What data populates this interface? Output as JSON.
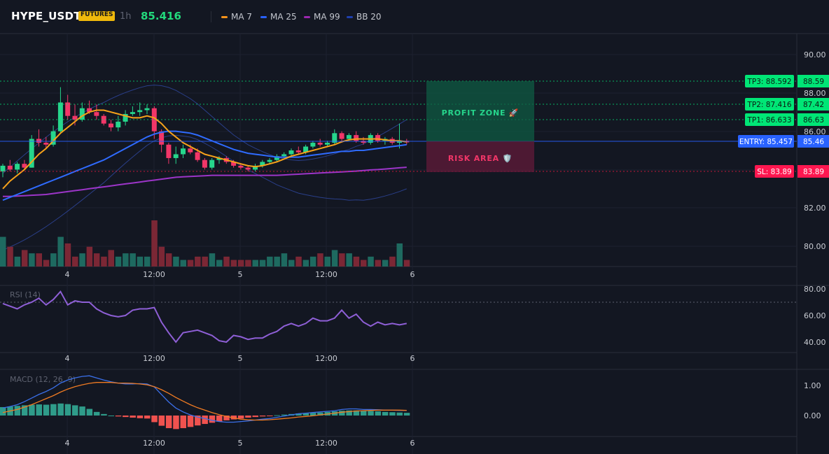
{
  "header": {
    "symbol": "HYPE_USDT",
    "badge": "FUTURES",
    "interval": "1h",
    "last_price": "85.416",
    "legend": [
      {
        "label": "MA 7",
        "color": "#f7931a"
      },
      {
        "label": "MA 25",
        "color": "#2962ff"
      },
      {
        "label": "MA 99",
        "color": "#9c27b0"
      },
      {
        "label": "BB 20",
        "color": "#1e40af"
      }
    ]
  },
  "colors": {
    "up": "#26d68c",
    "down": "#f23668",
    "volume_up": "#1e6a60",
    "volume_down": "#7b2735",
    "ma7": "#f7a21a",
    "ma25": "#2f6bff",
    "ma99": "#9c35c8",
    "bb": "#2a3f8a",
    "rsi": "#8e5fd6",
    "macd": "#3a6fe8",
    "signal": "#f07b22",
    "tp": "#00e676",
    "entry": "#2962ff",
    "sl": "#ff1744"
  },
  "price_axis": {
    "ticks": [
      "90.00",
      "88.00",
      "86.00",
      "82.00",
      "80.00"
    ]
  },
  "time_axis": {
    "labels": [
      "4",
      "12:00",
      "5",
      "12:00",
      "6"
    ]
  },
  "levels": {
    "tp3": {
      "tag": "TP3: 88.592",
      "value": "88.59"
    },
    "tp2": {
      "tag": "TP2: 87.416",
      "value": "87.42"
    },
    "tp1": {
      "tag": "TP1: 86.633",
      "value": "86.63"
    },
    "entry": {
      "tag": "ENTRY: 85.457",
      "value": "85.46"
    },
    "sl": {
      "tag": "SL: 83.89",
      "value": "83.89"
    }
  },
  "zones": {
    "profit": "PROFIT ZONE 🚀",
    "risk": "RISK AREA 🛡️"
  },
  "rsi": {
    "title": "RSI (14)",
    "ticks": [
      "80.00",
      "60.00",
      "40.00"
    ]
  },
  "macd": {
    "title": "MACD (12, 26, 9)",
    "ticks": [
      "1.00",
      "0.00"
    ]
  },
  "chart_data": {
    "type": "candlestick",
    "candles_ohlc": [
      [
        83.9,
        84.3,
        83.6,
        84.2
      ],
      [
        84.2,
        84.5,
        83.9,
        84.0
      ],
      [
        84.0,
        84.4,
        83.8,
        84.3
      ],
      [
        84.3,
        84.5,
        84.0,
        84.1
      ],
      [
        84.1,
        85.8,
        84.1,
        85.6
      ],
      [
        85.6,
        86.1,
        85.2,
        85.4
      ],
      [
        85.4,
        85.7,
        85.1,
        85.3
      ],
      [
        85.3,
        86.3,
        85.2,
        86.0
      ],
      [
        86.0,
        88.3,
        85.9,
        87.5
      ],
      [
        87.5,
        87.9,
        86.6,
        86.8
      ],
      [
        86.8,
        87.4,
        86.3,
        86.6
      ],
      [
        86.6,
        87.5,
        86.5,
        87.2
      ],
      [
        87.2,
        87.6,
        86.9,
        87.0
      ],
      [
        87.0,
        87.4,
        86.6,
        86.8
      ],
      [
        86.8,
        86.9,
        86.3,
        86.4
      ],
      [
        86.4,
        86.6,
        86.0,
        86.2
      ],
      [
        86.2,
        86.8,
        86.0,
        86.5
      ],
      [
        86.5,
        87.1,
        86.3,
        86.9
      ],
      [
        86.9,
        87.3,
        86.8,
        87.0
      ],
      [
        87.0,
        87.5,
        86.8,
        87.1
      ],
      [
        87.1,
        87.4,
        86.9,
        87.2
      ],
      [
        87.2,
        87.3,
        85.6,
        86.0
      ],
      [
        86.0,
        86.1,
        84.9,
        85.3
      ],
      [
        85.3,
        85.4,
        84.3,
        84.6
      ],
      [
        84.6,
        85.2,
        84.3,
        84.8
      ],
      [
        84.8,
        85.3,
        84.6,
        85.1
      ],
      [
        85.1,
        85.3,
        84.8,
        84.9
      ],
      [
        84.9,
        85.1,
        84.4,
        84.5
      ],
      [
        84.5,
        84.6,
        84.0,
        84.1
      ],
      [
        84.1,
        84.6,
        84.0,
        84.5
      ],
      [
        84.5,
        84.7,
        84.3,
        84.6
      ],
      [
        84.6,
        84.7,
        84.3,
        84.4
      ],
      [
        84.4,
        84.5,
        84.1,
        84.2
      ],
      [
        84.2,
        84.3,
        84.0,
        84.1
      ],
      [
        84.1,
        84.2,
        83.9,
        84.0
      ],
      [
        84.0,
        84.3,
        83.9,
        84.2
      ],
      [
        84.2,
        84.5,
        84.1,
        84.4
      ],
      [
        84.4,
        84.6,
        84.3,
        84.5
      ],
      [
        84.5,
        84.8,
        84.4,
        84.7
      ],
      [
        84.7,
        84.9,
        84.6,
        84.8
      ],
      [
        84.8,
        85.1,
        84.7,
        85.0
      ],
      [
        85.0,
        85.2,
        84.8,
        84.9
      ],
      [
        84.9,
        85.3,
        84.8,
        85.2
      ],
      [
        85.2,
        85.5,
        85.1,
        85.4
      ],
      [
        85.4,
        85.6,
        85.2,
        85.3
      ],
      [
        85.3,
        85.5,
        85.2,
        85.4
      ],
      [
        85.4,
        86.1,
        85.3,
        85.9
      ],
      [
        85.9,
        86.0,
        85.4,
        85.6
      ],
      [
        85.6,
        85.9,
        85.5,
        85.8
      ],
      [
        85.8,
        86.0,
        85.4,
        85.5
      ],
      [
        85.5,
        85.7,
        85.3,
        85.4
      ],
      [
        85.4,
        85.9,
        85.3,
        85.8
      ],
      [
        85.8,
        85.9,
        85.4,
        85.5
      ],
      [
        85.5,
        85.7,
        85.3,
        85.6
      ],
      [
        85.6,
        85.7,
        85.3,
        85.4
      ],
      [
        85.4,
        86.4,
        85.1,
        85.5
      ],
      [
        85.5,
        85.6,
        85.3,
        85.42
      ]
    ],
    "volume": [
      9,
      6,
      3,
      5,
      4,
      4,
      2,
      4,
      9,
      7,
      3,
      4,
      6,
      4,
      3,
      5,
      3,
      4,
      4,
      3,
      3,
      14,
      6,
      4,
      3,
      2,
      2,
      3,
      3,
      4,
      2,
      3,
      2,
      2,
      2,
      2,
      2,
      3,
      3,
      4,
      2,
      3,
      2,
      3,
      4,
      3,
      5,
      4,
      4,
      3,
      2,
      3,
      2,
      2,
      3,
      7,
      2
    ],
    "volume_max": 14,
    "ma7": [
      83.0,
      83.4,
      83.7,
      84.0,
      84.4,
      84.8,
      85.1,
      85.5,
      85.9,
      86.2,
      86.5,
      86.8,
      87.0,
      87.1,
      87.1,
      87.0,
      86.9,
      86.8,
      86.7,
      86.7,
      86.8,
      86.7,
      86.4,
      86.0,
      85.7,
      85.4,
      85.2,
      85.0,
      84.8,
      84.7,
      84.6,
      84.5,
      84.4,
      84.3,
      84.2,
      84.15,
      84.2,
      84.3,
      84.4,
      84.55,
      84.7,
      84.8,
      84.9,
      85.0,
      85.1,
      85.2,
      85.3,
      85.45,
      85.55,
      85.6,
      85.6,
      85.6,
      85.6,
      85.55,
      85.5,
      85.5,
      85.45
    ],
    "ma25": [
      82.4,
      82.55,
      82.7,
      82.85,
      83.0,
      83.15,
      83.3,
      83.45,
      83.6,
      83.75,
      83.9,
      84.05,
      84.2,
      84.35,
      84.5,
      84.7,
      84.9,
      85.1,
      85.3,
      85.5,
      85.7,
      85.85,
      85.95,
      86.0,
      86.0,
      85.95,
      85.9,
      85.8,
      85.65,
      85.5,
      85.35,
      85.2,
      85.05,
      84.95,
      84.85,
      84.8,
      84.75,
      84.7,
      84.65,
      84.65,
      84.65,
      84.65,
      84.7,
      84.75,
      84.8,
      84.85,
      84.9,
      84.95,
      84.95,
      85.0,
      85.0,
      85.05,
      85.1,
      85.15,
      85.2,
      85.25,
      85.3
    ],
    "ma99": [
      82.6,
      82.6,
      82.62,
      82.64,
      82.66,
      82.68,
      82.7,
      82.75,
      82.8,
      82.85,
      82.9,
      82.95,
      83.0,
      83.05,
      83.1,
      83.15,
      83.2,
      83.25,
      83.3,
      83.35,
      83.4,
      83.45,
      83.5,
      83.55,
      83.6,
      83.62,
      83.64,
      83.66,
      83.68,
      83.7,
      83.7,
      83.7,
      83.7,
      83.7,
      83.7,
      83.7,
      83.7,
      83.7,
      83.7,
      83.72,
      83.74,
      83.76,
      83.78,
      83.8,
      83.82,
      83.84,
      83.86,
      83.88,
      83.9,
      83.92,
      83.95,
      83.98,
      84.0,
      84.03,
      84.06,
      84.09,
      84.12
    ],
    "rsi": [
      69,
      67,
      65,
      68,
      70,
      73,
      68,
      72,
      78,
      68,
      71,
      70,
      70,
      65,
      62,
      60,
      59,
      60,
      64,
      65,
      65,
      66,
      55,
      47,
      40,
      47,
      48,
      49,
      47,
      45,
      41,
      40,
      45,
      44,
      42,
      43,
      43,
      46,
      48,
      52,
      54,
      52,
      54,
      58,
      56,
      56,
      58,
      64,
      58,
      61,
      55,
      52,
      55,
      53,
      54,
      53,
      54
    ],
    "macd_hist": [
      0.28,
      0.3,
      0.32,
      0.34,
      0.36,
      0.37,
      0.36,
      0.38,
      0.4,
      0.38,
      0.34,
      0.3,
      0.22,
      0.12,
      0.05,
      0.0,
      -0.03,
      -0.05,
      -0.07,
      -0.09,
      -0.1,
      -0.22,
      -0.34,
      -0.42,
      -0.45,
      -0.42,
      -0.38,
      -0.33,
      -0.28,
      -0.24,
      -0.2,
      -0.16,
      -0.13,
      -0.1,
      -0.07,
      -0.05,
      -0.03,
      -0.01,
      0.01,
      0.03,
      0.05,
      0.07,
      0.08,
      0.09,
      0.1,
      0.12,
      0.14,
      0.16,
      0.17,
      0.17,
      0.16,
      0.15,
      0.14,
      0.12,
      0.11,
      0.1,
      0.09
    ],
    "macd_line": [
      0.25,
      0.3,
      0.36,
      0.46,
      0.58,
      0.7,
      0.8,
      0.92,
      1.08,
      1.18,
      1.25,
      1.3,
      1.32,
      1.25,
      1.18,
      1.12,
      1.08,
      1.05,
      1.05,
      1.06,
      1.05,
      0.95,
      0.7,
      0.45,
      0.25,
      0.12,
      0.02,
      -0.05,
      -0.1,
      -0.16,
      -0.2,
      -0.22,
      -0.22,
      -0.2,
      -0.18,
      -0.15,
      -0.12,
      -0.1,
      -0.06,
      -0.02,
      0.02,
      0.06,
      0.08,
      0.1,
      0.12,
      0.14,
      0.16,
      0.2,
      0.22,
      0.22,
      0.2,
      0.2,
      0.19,
      0.18,
      0.18,
      0.17,
      0.17
    ],
    "signal_line": [
      0.1,
      0.15,
      0.2,
      0.28,
      0.36,
      0.46,
      0.56,
      0.66,
      0.78,
      0.88,
      0.96,
      1.02,
      1.07,
      1.1,
      1.1,
      1.1,
      1.08,
      1.08,
      1.07,
      1.05,
      1.02,
      0.96,
      0.86,
      0.74,
      0.6,
      0.48,
      0.36,
      0.26,
      0.18,
      0.1,
      0.03,
      -0.03,
      -0.08,
      -0.12,
      -0.14,
      -0.15,
      -0.15,
      -0.14,
      -0.12,
      -0.1,
      -0.08,
      -0.05,
      -0.03,
      -0.01,
      0.02,
      0.05,
      0.08,
      0.11,
      0.13,
      0.15,
      0.16,
      0.17,
      0.18,
      0.18,
      0.18,
      0.18,
      0.17
    ]
  }
}
